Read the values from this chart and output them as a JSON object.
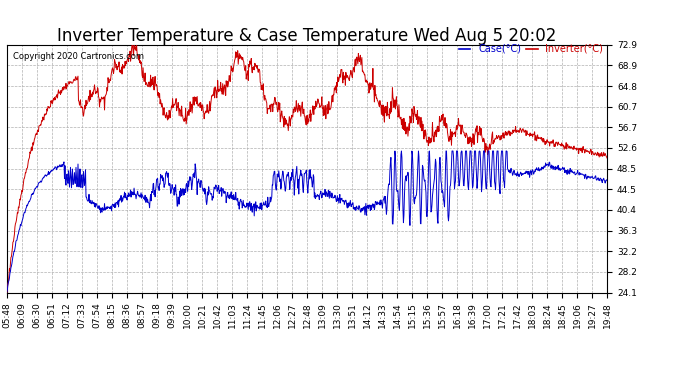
{
  "title": "Inverter Temperature & Case Temperature Wed Aug 5 20:02",
  "copyright": "Copyright 2020 Cartronics.com",
  "legend_case": "Case(°C)",
  "legend_inverter": "Inverter(°C)",
  "ymin": 24.1,
  "ymax": 72.9,
  "yticks": [
    72.9,
    68.9,
    64.8,
    60.7,
    56.7,
    52.6,
    48.5,
    44.5,
    40.4,
    36.3,
    32.2,
    28.2,
    24.1
  ],
  "background_color": "#ffffff",
  "grid_color": "#b0b0b0",
  "case_color": "#cc0000",
  "inverter_color": "#0000cc",
  "title_fontsize": 12,
  "tick_fontsize": 6.5,
  "xtick_labels": [
    "05:48",
    "06:09",
    "06:30",
    "06:51",
    "07:12",
    "07:33",
    "07:54",
    "08:15",
    "08:36",
    "08:57",
    "09:18",
    "09:39",
    "10:00",
    "10:21",
    "10:42",
    "11:03",
    "11:24",
    "11:45",
    "12:06",
    "12:27",
    "12:48",
    "13:09",
    "13:30",
    "13:51",
    "14:12",
    "14:33",
    "14:54",
    "15:15",
    "15:36",
    "15:57",
    "16:18",
    "16:39",
    "17:00",
    "17:21",
    "17:42",
    "18:03",
    "18:24",
    "18:45",
    "19:06",
    "19:27",
    "19:48"
  ]
}
